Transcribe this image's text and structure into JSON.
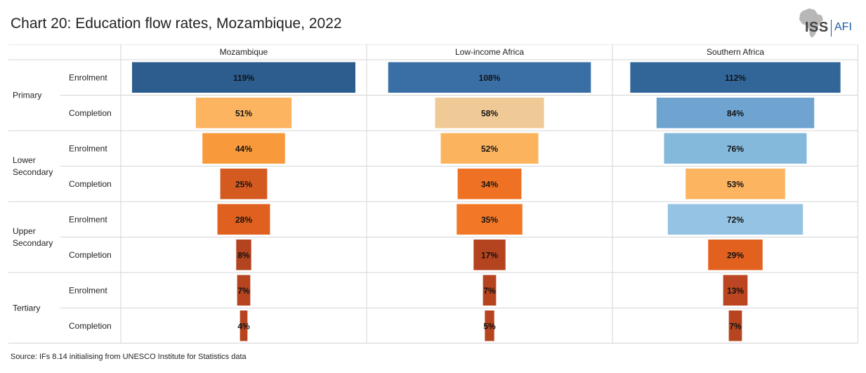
{
  "header": {
    "title": "Chart 20: Education flow rates, Mozambique, 2022",
    "logo_iss": "ISS",
    "logo_afi": "AFI"
  },
  "footer": {
    "source": "Source: IFs 8.14 initialising from UNESCO Institute for Statistics data"
  },
  "chart_data": {
    "type": "bar",
    "orientation": "horizontal-centered",
    "columns": [
      "Mozambique",
      "Low-income Africa",
      "Southern Africa"
    ],
    "levels": [
      {
        "name": "Primary",
        "rows": [
          "Enrolment",
          "Completion"
        ]
      },
      {
        "name": "Lower Secondary",
        "rows": [
          "Enrolment",
          "Completion"
        ]
      },
      {
        "name": "Upper Secondary",
        "rows": [
          "Enrolment",
          "Completion"
        ]
      },
      {
        "name": "Tertiary",
        "rows": [
          "Enrolment",
          "Completion"
        ]
      }
    ],
    "values": [
      [
        119,
        108,
        112
      ],
      [
        51,
        58,
        84
      ],
      [
        44,
        52,
        76
      ],
      [
        25,
        34,
        53
      ],
      [
        28,
        35,
        72
      ],
      [
        8,
        17,
        29
      ],
      [
        7,
        7,
        13
      ],
      [
        4,
        5,
        7
      ]
    ],
    "labels": [
      [
        "119%",
        "108%",
        "112%"
      ],
      [
        "51%",
        "58%",
        "84%"
      ],
      [
        "44%",
        "52%",
        "76%"
      ],
      [
        "25%",
        "34%",
        "53%"
      ],
      [
        "28%",
        "35%",
        "72%"
      ],
      [
        "8%",
        "17%",
        "29%"
      ],
      [
        "7%",
        "7%",
        "13%"
      ],
      [
        "4%",
        "5%",
        "7%"
      ]
    ],
    "colors": [
      [
        "#2c5d8e",
        "#3a6fa5",
        "#326699"
      ],
      [
        "#fcb461",
        "#f0ca96",
        "#6ea4cf"
      ],
      [
        "#f89a3b",
        "#fcb35e",
        "#85b9dc"
      ],
      [
        "#d45a20",
        "#ee7124",
        "#fcb460"
      ],
      [
        "#e0601f",
        "#f27828",
        "#95c3e3"
      ],
      [
        "#b3441f",
        "#b4441f",
        "#e2611f"
      ],
      [
        "#b5441f",
        "#b5441f",
        "#bb4621"
      ],
      [
        "#b6451f",
        "#b6451f",
        "#b6451f"
      ]
    ]
  }
}
